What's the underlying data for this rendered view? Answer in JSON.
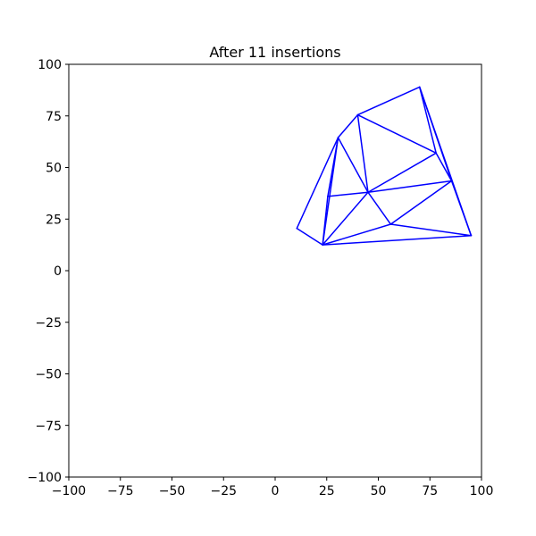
{
  "chart_data": {
    "type": "line",
    "title": "After 11 insertions",
    "xlabel": "",
    "ylabel": "",
    "xlim": [
      -100,
      100
    ],
    "ylim": [
      -100,
      100
    ],
    "xticks": [
      -100,
      -75,
      -50,
      -25,
      0,
      25,
      50,
      75,
      100
    ],
    "yticks": [
      -100,
      -75,
      -50,
      -25,
      0,
      25,
      50,
      75,
      100
    ],
    "xtick_labels": [
      "−100",
      "−75",
      "−50",
      "−25",
      "0",
      "25",
      "50",
      "75",
      "100"
    ],
    "ytick_labels": [
      "−100",
      "−75",
      "−50",
      "−25",
      "0",
      "25",
      "50",
      "75",
      "100"
    ],
    "grid": false,
    "edge_color": "#0000ff",
    "points": [
      {
        "id": "A",
        "x": 70,
        "y": 89
      },
      {
        "id": "B",
        "x": 40,
        "y": 75.5
      },
      {
        "id": "C",
        "x": 30.5,
        "y": 64.5
      },
      {
        "id": "D",
        "x": 78,
        "y": 57
      },
      {
        "id": "E",
        "x": 85.5,
        "y": 43.5
      },
      {
        "id": "F",
        "x": 45,
        "y": 38
      },
      {
        "id": "G",
        "x": 25.5,
        "y": 36
      },
      {
        "id": "H",
        "x": 56,
        "y": 22.5
      },
      {
        "id": "I",
        "x": 10.5,
        "y": 20.5
      },
      {
        "id": "J",
        "x": 95,
        "y": 17
      },
      {
        "id": "K",
        "x": 23,
        "y": 12.5
      }
    ],
    "edges": [
      [
        "A",
        "B"
      ],
      [
        "A",
        "D"
      ],
      [
        "A",
        "E"
      ],
      [
        "A",
        "J"
      ],
      [
        "B",
        "C"
      ],
      [
        "B",
        "D"
      ],
      [
        "B",
        "F"
      ],
      [
        "C",
        "F"
      ],
      [
        "C",
        "G"
      ],
      [
        "C",
        "I"
      ],
      [
        "C",
        "K"
      ],
      [
        "D",
        "E"
      ],
      [
        "D",
        "F"
      ],
      [
        "E",
        "F"
      ],
      [
        "E",
        "H"
      ],
      [
        "E",
        "J"
      ],
      [
        "F",
        "G"
      ],
      [
        "F",
        "H"
      ],
      [
        "F",
        "K"
      ],
      [
        "G",
        "K"
      ],
      [
        "H",
        "J"
      ],
      [
        "H",
        "K"
      ],
      [
        "I",
        "K"
      ],
      [
        "J",
        "K"
      ]
    ]
  }
}
